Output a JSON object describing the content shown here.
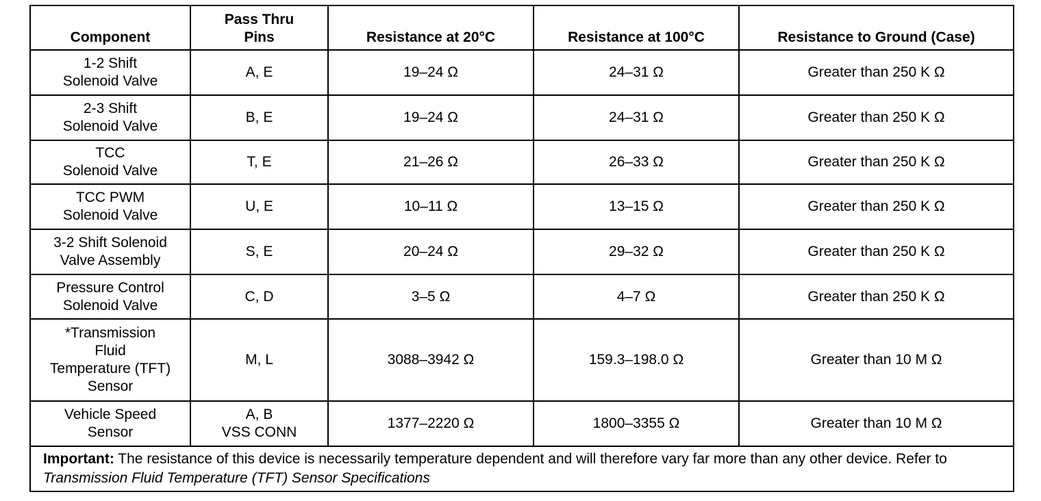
{
  "header": {
    "columns": [
      "Component",
      "Pass Thru\nPins",
      "Resistance at 20°C",
      "Resistance at 100°C",
      "Resistance to Ground (Case)"
    ]
  },
  "table": {
    "rows": [
      [
        "1-2 Shift\nSolenoid Valve",
        "A, E",
        "19–24 Ω",
        "24–31 Ω",
        "Greater than 250 K Ω"
      ],
      [
        "2-3 Shift\nSolenoid Valve",
        "B, E",
        "19–24 Ω",
        "24–31 Ω",
        "Greater than 250 K Ω"
      ],
      [
        "TCC\nSolenoid Valve",
        "T, E",
        "21–26 Ω",
        "26–33 Ω",
        "Greater than 250 K Ω"
      ],
      [
        "TCC PWM\nSolenoid Valve",
        "U, E",
        "10–11 Ω",
        "13–15 Ω",
        "Greater than 250 K Ω"
      ],
      [
        "3-2 Shift Solenoid\nValve Assembly",
        "S, E",
        "20–24 Ω",
        "29–32 Ω",
        "Greater than 250 K Ω"
      ],
      [
        "Pressure Control\nSolenoid Valve",
        "C, D",
        "3–5 Ω",
        "4–7 Ω",
        "Greater than 250 K Ω"
      ],
      [
        "*Transmission\nFluid\nTemperature (TFT)\nSensor",
        "M, L",
        "3088–3942 Ω",
        "159.3–198.0 Ω",
        "Greater than 10 M Ω"
      ],
      [
        "Vehicle Speed\nSensor",
        "A, B\nVSS CONN",
        "1377–2220 Ω",
        "1800–3355 Ω",
        "Greater than 10 M Ω"
      ]
    ]
  },
  "note": {
    "label": "Important:",
    "text": "The resistance of this device is necessarily temperature dependent and will therefore vary far more than any other device. Refer to",
    "reference": "Transmission Fluid Temperature (TFT) Sensor Specifications"
  }
}
